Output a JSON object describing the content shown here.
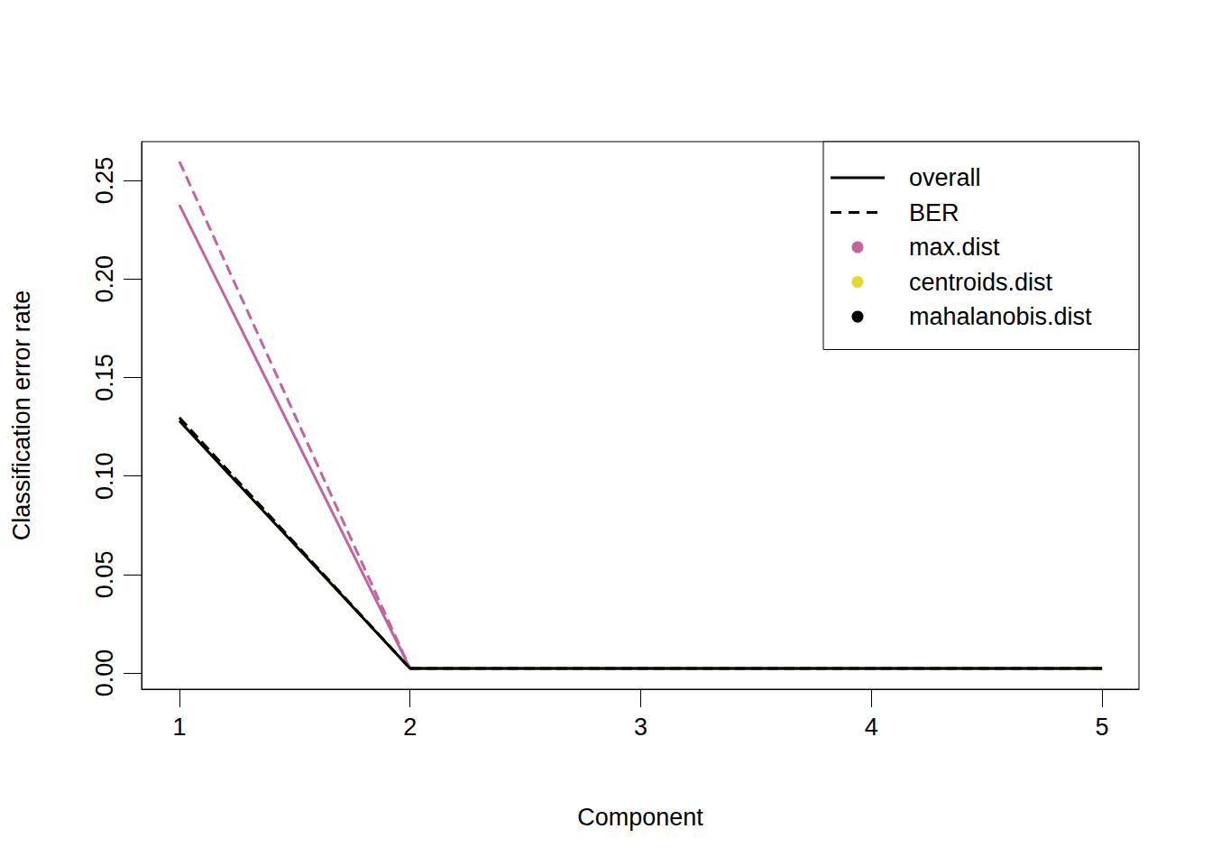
{
  "chart_data": {
    "type": "line",
    "xlabel": "Component",
    "ylabel": "Classification error rate",
    "x": [
      1,
      2,
      3,
      4,
      5
    ],
    "xlim": [
      0.836,
      5.16
    ],
    "xticks": [
      1,
      2,
      3,
      4,
      5
    ],
    "ylim": [
      -0.0082,
      0.2697
    ],
    "yticks": [
      {
        "value": 0,
        "label": "0.00"
      },
      {
        "value": 0.05,
        "label": "0.05"
      },
      {
        "value": 0.1,
        "label": "0.10"
      },
      {
        "value": 0.15,
        "label": "0.15"
      },
      {
        "value": 0.2,
        "label": "0.20"
      },
      {
        "value": 0.25,
        "label": "0.25"
      }
    ],
    "grid": false,
    "legend": "top-right",
    "series": [
      {
        "name": "max.dist",
        "measure": "overall",
        "line_style": "solid",
        "color": "#c2649f",
        "values": [
          0.2376,
          0.0023,
          0.0023,
          0.0023,
          0.0023
        ]
      },
      {
        "name": "max.dist",
        "measure": "BER",
        "line_style": "dashed",
        "color": "#c2649f",
        "values": [
          0.2596,
          0.0023,
          0.0023,
          0.0023,
          0.0023
        ]
      },
      {
        "name": "centroids.dist",
        "measure": "overall",
        "line_style": "solid",
        "color": "#e3d92f",
        "values": [
          0.128,
          0.0023,
          0.0023,
          0.0023,
          0.0023
        ]
      },
      {
        "name": "centroids.dist",
        "measure": "BER",
        "line_style": "dashed",
        "color": "#e3d92f",
        "values": [
          0.1296,
          0.0023,
          0.0023,
          0.0023,
          0.0023
        ]
      },
      {
        "name": "mahalanobis.dist",
        "measure": "overall",
        "line_style": "solid",
        "color": "#000000",
        "values": [
          0.128,
          0.0023,
          0.0023,
          0.0023,
          0.0023
        ]
      },
      {
        "name": "mahalanobis.dist",
        "measure": "BER",
        "line_style": "dashed",
        "color": "#000000",
        "values": [
          0.1296,
          0.0023,
          0.0023,
          0.0023,
          0.0023
        ]
      }
    ]
  }
}
